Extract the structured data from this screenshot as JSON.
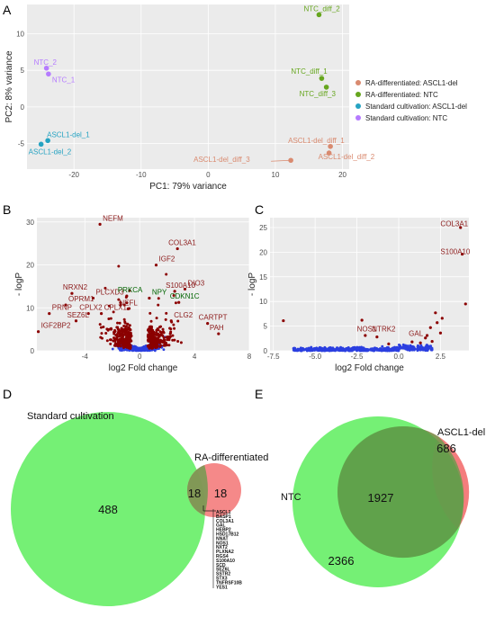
{
  "panels": {
    "A": "A",
    "B": "B",
    "C": "C",
    "D": "D",
    "E": "E"
  },
  "chart_data": [
    {
      "id": "A",
      "type": "scatter",
      "xlabel": "PC1: 79% variance",
      "ylabel": "PC2: 8% variance",
      "xlim": [
        -27,
        21
      ],
      "ylim": [
        -8.5,
        14
      ],
      "xticks": [
        -20,
        -10,
        0,
        10,
        20
      ],
      "yticks": [
        -5,
        0,
        5,
        10
      ],
      "grid": true,
      "legend_position": "right",
      "series": [
        {
          "name": "RA-differentiated: ASCL1-del",
          "color": "#d98a6f",
          "points": [
            {
              "label": "ASCL1-del_diff_1",
              "x": 18.2,
              "y": -5.4
            },
            {
              "label": "ASCL1-del_diff_2",
              "x": 18.0,
              "y": -6.3
            },
            {
              "label": "ASCL1-del_diff_3",
              "x": 12.3,
              "y": -7.3
            }
          ]
        },
        {
          "name": "RA-differentiated: NTC",
          "color": "#66a61e",
          "points": [
            {
              "label": "NTC_diff_1",
              "x": 16.9,
              "y": 3.9
            },
            {
              "label": "NTC_diff_2",
              "x": 16.5,
              "y": 12.6
            },
            {
              "label": "NTC_diff_3",
              "x": 17.6,
              "y": 2.7
            }
          ]
        },
        {
          "name": "Standard cultivation: ASCL1-del",
          "color": "#26a3c2",
          "points": [
            {
              "label": "ASCL1-del_1",
              "x": -23.9,
              "y": -4.6
            },
            {
              "label": "ASCL1-del_2",
              "x": -24.9,
              "y": -5.1
            }
          ]
        },
        {
          "name": "Standard cultivation: NTC",
          "color": "#b57bff",
          "points": [
            {
              "label": "NTC_2",
              "x": -24.1,
              "y": 5.3
            },
            {
              "label": "NTC_1",
              "x": -23.8,
              "y": 4.5
            }
          ]
        }
      ]
    },
    {
      "id": "B",
      "type": "scatter",
      "xlabel": "log2 Fold change",
      "ylabel": "- logP",
      "xlim": [
        -7.5,
        8
      ],
      "ylim": [
        0,
        31
      ],
      "xticks": [
        -4,
        0,
        4,
        8
      ],
      "yticks": [
        0,
        10,
        20,
        30
      ],
      "grid": true,
      "labels": [
        {
          "text": "NEFM",
          "x": -2.7,
          "y": 30.3,
          "color": "#8b1a1a"
        },
        {
          "text": "COL3A1",
          "x": 2.1,
          "y": 24.6,
          "color": "#8b1a1a"
        },
        {
          "text": "IGF2",
          "x": 1.4,
          "y": 20.8,
          "color": "#8b1a1a"
        },
        {
          "text": "S100A10",
          "x": 1.9,
          "y": 14.7,
          "color": "#8b1a1a"
        },
        {
          "text": "DIO3",
          "x": 3.5,
          "y": 15.2,
          "color": "#8b1a1a"
        },
        {
          "text": "NRXN2",
          "x": -5.6,
          "y": 14.2,
          "color": "#8b1a1a"
        },
        {
          "text": "PLCXD3",
          "x": -3.2,
          "y": 13.1,
          "color": "#8b1a1a"
        },
        {
          "text": "PRKCA",
          "x": -1.6,
          "y": 13.6,
          "color": "#006400"
        },
        {
          "text": "NPY",
          "x": 0.9,
          "y": 13.1,
          "color": "#006400"
        },
        {
          "text": "CDKN1C",
          "x": 2.2,
          "y": 12.1,
          "color": "#006400"
        },
        {
          "text": "OPRM1",
          "x": -5.2,
          "y": 11.5,
          "color": "#8b1a1a"
        },
        {
          "text": "NEFL",
          "x": -1.5,
          "y": 10.6,
          "color": "#8b1a1a"
        },
        {
          "text": "PRNP",
          "x": -6.4,
          "y": 9.5,
          "color": "#8b1a1a"
        },
        {
          "text": "CPLX2",
          "x": -4.4,
          "y": 9.5,
          "color": "#8b1a1a"
        },
        {
          "text": "CPLX1",
          "x": -2.6,
          "y": 9.5,
          "color": "#8b1a1a"
        },
        {
          "text": "SEZ6L",
          "x": -5.3,
          "y": 7.8,
          "color": "#8b1a1a"
        },
        {
          "text": "CLG2",
          "x": 2.5,
          "y": 7.8,
          "color": "#8b1a1a"
        },
        {
          "text": "CARTPT",
          "x": 4.3,
          "y": 7.2,
          "color": "#8b1a1a"
        },
        {
          "text": "IGF2BP2",
          "x": -7.2,
          "y": 5.3,
          "color": "#8b1a1a"
        },
        {
          "text": "PAH",
          "x": 5.1,
          "y": 4.8,
          "color": "#8b1a1a"
        }
      ]
    },
    {
      "id": "C",
      "type": "scatter",
      "xlabel": "log2 Fold change",
      "ylabel": "- logP",
      "xlim": [
        -7.7,
        4.2
      ],
      "ylim": [
        0,
        27
      ],
      "xticks": [
        -7.5,
        -5.0,
        -2.5,
        0.0,
        2.5
      ],
      "yticks": [
        0,
        5,
        10,
        15,
        20,
        25
      ],
      "grid": true,
      "labels": [
        {
          "text": "COL3A1",
          "x": 2.5,
          "y": 25.3,
          "color": "#8b1a1a"
        },
        {
          "text": "S100A10",
          "x": 2.5,
          "y": 19.6,
          "color": "#8b1a1a"
        },
        {
          "text": "NOS1",
          "x": -2.5,
          "y": 3.9,
          "color": "#8b1a1a"
        },
        {
          "text": "NTRK2",
          "x": -1.6,
          "y": 3.9,
          "color": "#8b1a1a"
        },
        {
          "text": "GAL",
          "x": 0.6,
          "y": 3.0,
          "color": "#8b1a1a"
        }
      ]
    }
  ],
  "venn_d": {
    "left_title": "Standard cultivation",
    "right_title": "RA-differentiated",
    "left_only": "488",
    "overlap": "18",
    "right_only": "18",
    "genes": [
      "ASCL1",
      "BASP1",
      "COL3A1",
      "GAL",
      "HEBP2",
      "HSD17B12",
      "NNAT",
      "NOS1",
      "NXT2",
      "PLXNA2",
      "RGS4",
      "S100A10",
      "SCD",
      "SEZ6L",
      "SSTR2",
      "STX3",
      "TNFRSF10B",
      "YES1"
    ],
    "colors": {
      "left": "#66ee66",
      "right": "#f47c7c"
    }
  },
  "venn_e": {
    "left_title": "NTC",
    "right_title": "ASCL1-del",
    "left_only": "2366",
    "overlap": "1927",
    "right_only": "686",
    "colors": {
      "left": "#66ee66",
      "right": "#f47c7c"
    }
  }
}
